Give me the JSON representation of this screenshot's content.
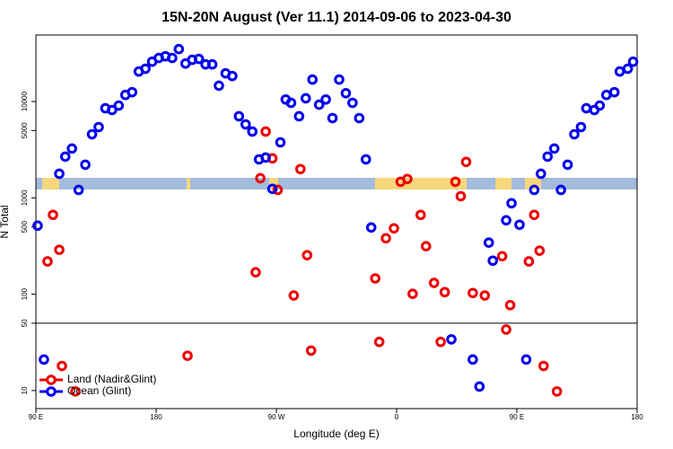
{
  "chart_data": {
    "type": "scatter",
    "title": "15N-20N August (Ver 11.1)   2014-09-06 to 2023-04-30",
    "x_label": "Longitude (deg E)",
    "y_label": "N Total",
    "log_y": true,
    "hline": 50,
    "legend": "bottom-left",
    "xlim": [
      90,
      540
    ],
    "xticks": [
      {
        "value": 90,
        "label": "90 E"
      },
      180,
      {
        "value": 270,
        "label": "90 W"
      },
      {
        "value": 360,
        "label": "0"
      },
      {
        "value": 450,
        "label": "90 E"
      },
      {
        "value": 540,
        "label": "180"
      }
    ],
    "ylim": [
      6.5,
      49000
    ],
    "yticks": [
      10,
      50,
      100,
      500,
      1000,
      5000,
      10000
    ],
    "series": [
      {
        "name": "Land (Nadir&Glint)",
        "color": "#ee0000",
        "x": [
          98.7,
          102.8,
          107.5,
          109.5,
          119.6,
          203.5,
          254.5,
          258,
          262,
          267,
          271,
          283,
          288,
          293,
          296,
          344,
          347,
          352,
          358,
          363,
          368,
          372,
          378,
          382,
          388,
          393,
          396,
          404,
          408,
          412,
          417,
          426,
          439,
          442,
          445,
          459,
          463,
          467,
          470,
          480
        ],
        "values": [
          219,
          666,
          289,
          18,
          9.8,
          23,
          169,
          1600,
          4880,
          2570,
          1210,
          97,
          1990,
          254,
          26,
          146,
          32,
          381,
          483,
          1470,
          1570,
          101,
          666,
          315,
          131,
          32,
          105,
          1470,
          1040,
          2360,
          103,
          97,
          248,
          43,
          77,
          219,
          666,
          283,
          18,
          9.8
        ]
      },
      {
        "name": "Ocean (Glint)",
        "color": "#0000ee",
        "x": [
          91.3,
          96,
          107.5,
          112,
          117,
          122,
          127,
          132,
          137,
          142,
          147,
          152,
          157,
          162,
          167,
          172,
          177,
          182,
          187,
          192,
          197,
          202,
          207,
          212,
          217,
          222,
          227,
          232,
          237,
          242,
          247,
          252,
          257,
          262,
          267,
          273,
          277,
          281,
          287,
          292,
          297,
          302,
          307,
          312,
          317,
          322,
          327,
          332,
          337,
          341,
          401,
          417,
          422,
          429,
          432,
          442,
          446,
          452,
          457,
          463,
          468,
          473,
          478,
          483,
          488,
          493,
          498,
          502,
          508,
          512,
          517,
          523,
          527,
          533,
          537
        ],
        "values": [
          515,
          21,
          1780,
          2680,
          3250,
          1210,
          2210,
          4570,
          5430,
          8510,
          8160,
          9080,
          11700,
          12500,
          20500,
          21900,
          25900,
          28300,
          29500,
          28300,
          35000,
          24800,
          27100,
          27700,
          24300,
          24300,
          14600,
          19600,
          18400,
          7030,
          5790,
          4880,
          2510,
          2620,
          1240,
          3770,
          10500,
          9690,
          7030,
          10800,
          16900,
          9270,
          10500,
          6730,
          16900,
          12200,
          9690,
          6730,
          2510,
          493,
          34,
          21,
          11,
          343,
          223,
          585,
          879,
          526,
          21,
          1210,
          1780,
          2680,
          3250,
          1210,
          2210,
          4570,
          5430,
          8510,
          8160,
          9080,
          11700,
          12500,
          20500,
          21900,
          25900
        ]
      }
    ]
  }
}
